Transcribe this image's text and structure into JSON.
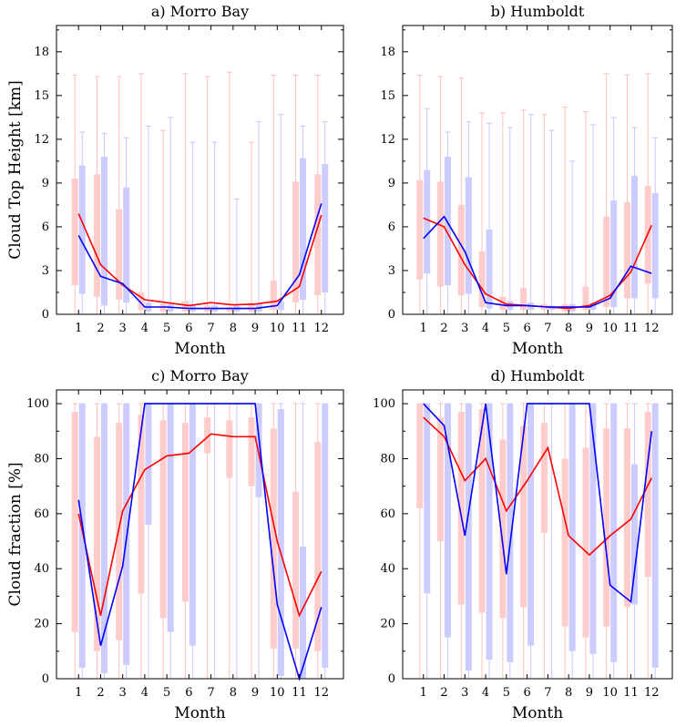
{
  "chart_data": [
    {
      "type": "boxplot-line",
      "title": "a) Morro Bay",
      "xlabel": "Month",
      "ylabel": "Cloud Top Height [km]",
      "categories": [
        "1",
        "2",
        "3",
        "4",
        "5",
        "6",
        "7",
        "8",
        "9",
        "10",
        "11",
        "12"
      ],
      "ylim": [
        0,
        19.8
      ],
      "yticks": [
        0,
        3,
        6,
        9,
        12,
        15,
        18
      ],
      "series": [
        {
          "name": "red",
          "color": "#ff0000",
          "line": [
            6.9,
            3.4,
            2.0,
            1.0,
            0.8,
            0.6,
            0.8,
            0.65,
            0.7,
            0.9,
            1.9,
            6.8
          ],
          "box_low": [
            2.0,
            1.2,
            1.0,
            0.3,
            0.2,
            0.2,
            0.2,
            0.2,
            0.2,
            0.3,
            0.8,
            1.3
          ],
          "box_high": [
            9.3,
            9.6,
            7.2,
            1.5,
            0.7,
            0.9,
            0.6,
            0.5,
            0.8,
            2.3,
            9.1,
            9.6
          ],
          "whisker_high": [
            16.4,
            16.3,
            16.3,
            16.5,
            12.6,
            16.5,
            16.3,
            16.6,
            11.8,
            16.4,
            16.4,
            16.4
          ]
        },
        {
          "name": "blue",
          "color": "#0000ff",
          "line": [
            5.4,
            2.6,
            2.1,
            0.5,
            0.5,
            0.4,
            0.4,
            0.4,
            0.4,
            0.6,
            2.7,
            7.6
          ],
          "box_low": [
            1.4,
            0.6,
            0.8,
            0.2,
            0.2,
            0.2,
            0.2,
            0.2,
            0.2,
            0.3,
            1.0,
            1.5
          ],
          "box_high": [
            10.2,
            10.8,
            8.7,
            0.8,
            0.7,
            0.7,
            0.6,
            0.6,
            0.7,
            0.9,
            10.7,
            10.3
          ],
          "whisker_high": [
            12.5,
            12.4,
            12.1,
            12.9,
            13.5,
            11.8,
            11.8,
            7.9,
            13.2,
            13.7,
            12.9,
            13.2
          ]
        }
      ]
    },
    {
      "type": "boxplot-line",
      "title": "b) Humboldt",
      "xlabel": "Month",
      "ylabel": "",
      "categories": [
        "1",
        "2",
        "3",
        "4",
        "5",
        "6",
        "7",
        "8",
        "9",
        "10",
        "11",
        "12"
      ],
      "ylim": [
        0,
        19.8
      ],
      "yticks": [
        0,
        3,
        6,
        9,
        12,
        15,
        18
      ],
      "series": [
        {
          "name": "red",
          "color": "#ff0000",
          "line": [
            6.6,
            6.0,
            3.4,
            1.4,
            0.7,
            0.6,
            0.5,
            0.4,
            0.6,
            1.3,
            2.9,
            6.1
          ],
          "box_low": [
            2.4,
            1.9,
            1.3,
            0.5,
            0.3,
            0.3,
            0.3,
            0.2,
            0.3,
            0.5,
            1.1,
            2.1
          ],
          "box_high": [
            9.2,
            9.1,
            7.5,
            4.3,
            1.2,
            1.8,
            0.7,
            0.7,
            1.9,
            6.7,
            7.7,
            8.8
          ],
          "whisker_high": [
            16.4,
            16.3,
            16.2,
            13.8,
            13.8,
            14.0,
            13.7,
            14.2,
            13.9,
            16.5,
            16.4,
            16.5
          ]
        },
        {
          "name": "blue",
          "color": "#0000ff",
          "line": [
            5.2,
            6.7,
            4.3,
            0.8,
            0.6,
            0.6,
            0.5,
            0.5,
            0.5,
            1.1,
            3.3,
            2.8
          ],
          "box_low": [
            2.8,
            2.0,
            1.4,
            0.4,
            0.3,
            0.3,
            0.3,
            0.2,
            0.3,
            0.5,
            1.1,
            1.1
          ],
          "box_high": [
            9.9,
            10.8,
            9.4,
            5.8,
            0.9,
            0.8,
            0.6,
            0.7,
            0.8,
            7.8,
            9.5,
            8.3
          ],
          "whisker_high": [
            14.1,
            12.5,
            13.2,
            13.1,
            12.8,
            13.7,
            12.6,
            10.5,
            13.0,
            13.5,
            12.8,
            12.1
          ]
        }
      ]
    },
    {
      "type": "boxplot-line",
      "title": "c) Morro Bay",
      "xlabel": "Month",
      "ylabel": "Cloud fraction [%]",
      "categories": [
        "1",
        "2",
        "3",
        "4",
        "5",
        "6",
        "7",
        "8",
        "9",
        "10",
        "11",
        "12"
      ],
      "ylim": [
        0,
        105
      ],
      "yticks": [
        0,
        20,
        40,
        60,
        80,
        100
      ],
      "series": [
        {
          "name": "red",
          "color": "#ff0000",
          "line": [
            60,
            23,
            61,
            76,
            81,
            82,
            89,
            88,
            88,
            50,
            23,
            39
          ],
          "box_low": [
            17,
            10,
            14,
            31,
            22,
            28,
            82,
            73,
            70,
            11,
            11,
            10
          ],
          "box_high": [
            97,
            88,
            93,
            96,
            94,
            93,
            95,
            94,
            95,
            91,
            68,
            86
          ],
          "whisker_high": [
            100,
            100,
            100,
            100,
            100,
            100,
            100,
            100,
            100,
            100,
            100,
            100
          ]
        },
        {
          "name": "blue",
          "color": "#0000ff",
          "line": [
            65,
            12,
            41,
            100,
            100,
            100,
            100,
            100,
            100,
            27,
            0,
            26
          ],
          "box_low": [
            4,
            2,
            5,
            56,
            17,
            12,
            100,
            100,
            66,
            1,
            0,
            4
          ],
          "box_high": [
            100,
            100,
            100,
            100,
            100,
            100,
            100,
            100,
            100,
            98,
            48,
            100
          ],
          "whisker_high": [
            100,
            100,
            100,
            100,
            100,
            100,
            100,
            100,
            100,
            100,
            100,
            100
          ]
        }
      ]
    },
    {
      "type": "boxplot-line",
      "title": "d) Humboldt",
      "xlabel": "Month",
      "ylabel": "",
      "categories": [
        "1",
        "2",
        "3",
        "4",
        "5",
        "6",
        "7",
        "8",
        "9",
        "10",
        "11",
        "12"
      ],
      "ylim": [
        0,
        105
      ],
      "yticks": [
        0,
        20,
        40,
        60,
        80,
        100
      ],
      "series": [
        {
          "name": "red",
          "color": "#ff0000",
          "line": [
            95,
            88,
            72,
            80,
            61,
            72,
            84,
            52,
            45,
            52,
            58,
            73
          ],
          "box_low": [
            62,
            50,
            27,
            24,
            22,
            26,
            53,
            19,
            15,
            19,
            26,
            37
          ],
          "box_high": [
            100,
            95,
            97,
            98,
            87,
            92,
            93,
            80,
            84,
            91,
            91,
            97
          ],
          "whisker_high": [
            100,
            100,
            100,
            100,
            100,
            100,
            100,
            100,
            100,
            100,
            100,
            100
          ]
        },
        {
          "name": "blue",
          "color": "#0000ff",
          "line": [
            100,
            92,
            52,
            100,
            38,
            100,
            100,
            100,
            100,
            34,
            28,
            90
          ],
          "box_low": [
            31,
            15,
            3,
            7,
            6,
            12,
            100,
            10,
            9,
            6,
            27,
            4
          ],
          "box_high": [
            100,
            100,
            100,
            100,
            100,
            100,
            100,
            100,
            100,
            100,
            78,
            100
          ],
          "whisker_high": [
            100,
            100,
            100,
            100,
            100,
            100,
            100,
            100,
            100,
            100,
            100,
            100
          ]
        }
      ]
    }
  ]
}
